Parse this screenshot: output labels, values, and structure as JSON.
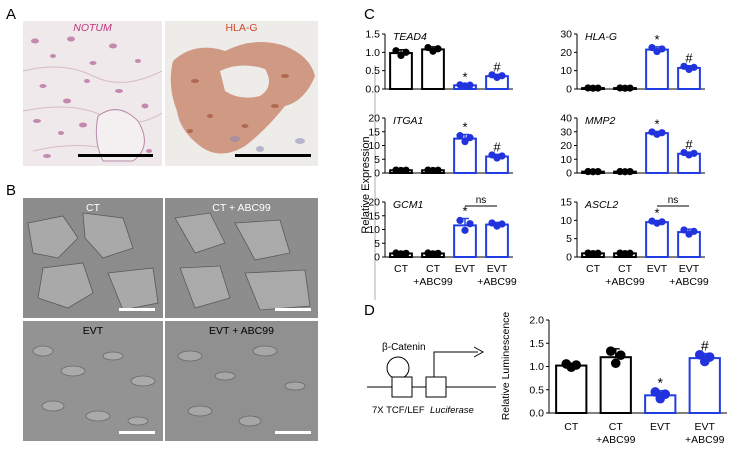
{
  "panels": {
    "a": "A",
    "b": "B",
    "c": "C",
    "d": "D"
  },
  "panel_a": {
    "left_label": "NOTUM",
    "right_label": "HLA-G"
  },
  "panel_b": {
    "captions": [
      "CT",
      "CT + ABC99",
      "EVT",
      "EVT + ABC99"
    ]
  },
  "panel_c": {
    "ylabel": "Relative Expression",
    "categories": [
      "CT",
      "CT\n+ABC99",
      "EVT",
      "EVT\n+ABC99"
    ],
    "colors": {
      "control": "#000000",
      "evt": "#1f3de0",
      "point_evt": "#2233dd"
    },
    "ns_label": "ns"
  },
  "panel_d": {
    "ylabel": "Relative Luminescence",
    "diagram": {
      "beta_catenin": "β-Catenin",
      "tcf_lef": "7X TCF/LEF",
      "luciferase": "Luciferase"
    },
    "categories": [
      "CT",
      "CT\n+ABC99",
      "EVT",
      "EVT\n+ABC99"
    ]
  },
  "chart_data": [
    {
      "type": "bar",
      "title": "TEAD4",
      "categories": [
        "CT",
        "CT +ABC99",
        "EVT",
        "EVT +ABC99"
      ],
      "values": [
        0.98,
        1.08,
        0.1,
        0.35
      ],
      "errors": [
        0.09,
        0.07,
        0.02,
        0.05
      ],
      "ylim": [
        0,
        1.5
      ],
      "yticks": [
        "0.0",
        "0.5",
        "1.0",
        "1.5"
      ],
      "marks": [
        "",
        "",
        "*",
        "#"
      ]
    },
    {
      "type": "bar",
      "title": "HLA-G",
      "categories": [
        "CT",
        "CT +ABC99",
        "EVT",
        "EVT +ABC99"
      ],
      "values": [
        0.5,
        0.5,
        21.5,
        11.5
      ],
      "errors": [
        0.1,
        0.1,
        1.5,
        1.2
      ],
      "ylim": [
        0,
        30
      ],
      "yticks": [
        "0",
        "10",
        "20",
        "30"
      ],
      "marks": [
        "",
        "",
        "*",
        "#"
      ]
    },
    {
      "type": "bar",
      "title": "ITGA1",
      "categories": [
        "CT",
        "CT +ABC99",
        "EVT",
        "EVT +ABC99"
      ],
      "values": [
        1.0,
        1.0,
        12.5,
        6.0
      ],
      "errors": [
        0.1,
        0.1,
        1.5,
        0.8
      ],
      "ylim": [
        0,
        20
      ],
      "yticks": [
        "0",
        "5",
        "10",
        "15",
        "20"
      ],
      "marks": [
        "",
        "",
        "*",
        "#"
      ]
    },
    {
      "type": "bar",
      "title": "MMP2",
      "categories": [
        "CT",
        "CT +ABC99",
        "EVT",
        "EVT +ABC99"
      ],
      "values": [
        1.0,
        1.0,
        29.0,
        14.0
      ],
      "errors": [
        0.1,
        0.1,
        1.2,
        1.2
      ],
      "ylim": [
        0,
        40
      ],
      "yticks": [
        "0",
        "10",
        "20",
        "30",
        "40"
      ],
      "marks": [
        "",
        "",
        "*",
        "#"
      ]
    },
    {
      "type": "bar",
      "title": "GCM1",
      "categories": [
        "CT",
        "CT +ABC99",
        "EVT",
        "EVT +ABC99"
      ],
      "values": [
        1.3,
        1.3,
        11.5,
        11.8
      ],
      "errors": [
        0.2,
        0.2,
        2.5,
        0.8
      ],
      "ylim": [
        0,
        20
      ],
      "yticks": [
        "0",
        "5",
        "10",
        "15",
        "20"
      ],
      "marks": [
        "",
        "",
        "*",
        ""
      ],
      "ns": true
    },
    {
      "type": "bar",
      "title": "ASCL2",
      "categories": [
        "CT",
        "CT +ABC99",
        "EVT",
        "EVT +ABC99"
      ],
      "values": [
        1.0,
        1.0,
        9.5,
        6.8
      ],
      "errors": [
        0.1,
        0.1,
        0.4,
        0.8
      ],
      "ylim": [
        0,
        15
      ],
      "yticks": [
        "0",
        "5",
        "10",
        "15"
      ],
      "marks": [
        "",
        "",
        "*",
        ""
      ],
      "ns": true
    },
    {
      "type": "bar",
      "title": "",
      "categories": [
        "CT",
        "CT +ABC99",
        "EVT",
        "EVT +ABC99"
      ],
      "values": [
        1.02,
        1.2,
        0.38,
        1.18
      ],
      "errors": [
        0.05,
        0.18,
        0.1,
        0.1
      ],
      "ylim": [
        0,
        2.0
      ],
      "yticks": [
        "0.0",
        "0.5",
        "1.0",
        "1.5",
        "2.0"
      ],
      "marks": [
        "",
        "",
        "*",
        "#"
      ],
      "ylabel": "Relative Luminescence"
    }
  ]
}
